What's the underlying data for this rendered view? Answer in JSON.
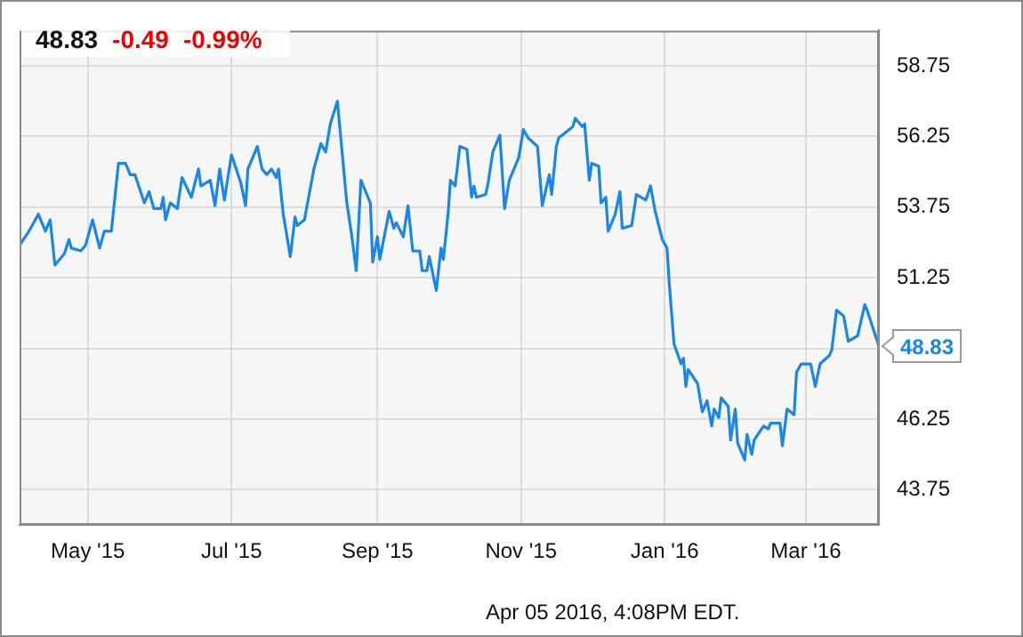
{
  "chart_data": {
    "type": "line",
    "x": [
      "2015-04-02",
      "2015-04-06",
      "2015-04-10",
      "2015-04-13",
      "2015-04-15",
      "2015-04-17",
      "2015-04-21",
      "2015-04-23",
      "2015-04-24",
      "2015-04-28",
      "2015-04-30",
      "2015-05-03",
      "2015-05-06",
      "2015-05-08",
      "2015-05-11",
      "2015-05-14",
      "2015-05-17",
      "2015-05-19",
      "2015-05-21",
      "2015-05-25",
      "2015-05-27",
      "2015-05-29",
      "2015-06-01",
      "2015-06-02",
      "2015-06-03",
      "2015-06-05",
      "2015-06-08",
      "2015-06-10",
      "2015-06-14",
      "2015-06-17",
      "2015-06-18",
      "2015-06-22",
      "2015-06-24",
      "2015-06-26",
      "2015-06-28",
      "2015-07-01",
      "2015-07-05",
      "2015-07-07",
      "2015-07-08",
      "2015-07-12",
      "2015-07-14",
      "2015-07-16",
      "2015-07-18",
      "2015-07-20",
      "2015-07-21",
      "2015-07-23",
      "2015-07-26",
      "2015-07-28",
      "2015-07-29",
      "2015-08-01",
      "2015-08-05",
      "2015-08-08",
      "2015-08-10",
      "2015-08-12",
      "2015-08-15",
      "2015-08-19",
      "2015-08-21",
      "2015-08-23",
      "2015-08-25",
      "2015-08-29",
      "2015-08-30",
      "2015-09-01",
      "2015-09-02",
      "2015-09-06",
      "2015-09-08",
      "2015-09-09",
      "2015-09-12",
      "2015-09-14",
      "2015-09-16",
      "2015-09-19",
      "2015-09-20",
      "2015-09-22",
      "2015-09-23",
      "2015-09-26",
      "2015-09-28",
      "2015-09-29",
      "2015-10-01",
      "2015-10-02",
      "2015-10-04",
      "2015-10-06",
      "2015-10-09",
      "2015-10-11",
      "2015-10-12",
      "2015-10-13",
      "2015-10-17",
      "2015-10-18",
      "2015-10-20",
      "2015-10-23",
      "2015-10-25",
      "2015-10-27",
      "2015-10-31",
      "2015-11-02",
      "2015-11-04",
      "2015-11-08",
      "2015-11-10",
      "2015-11-13",
      "2015-11-14",
      "2015-11-16",
      "2015-11-17",
      "2015-11-20",
      "2015-11-23",
      "2015-11-24",
      "2015-11-27",
      "2015-11-28",
      "2015-11-30",
      "2015-12-01",
      "2015-12-04",
      "2015-12-05",
      "2015-12-07",
      "2015-12-08",
      "2015-12-11",
      "2015-12-13",
      "2015-12-14",
      "2015-12-18",
      "2015-12-20",
      "2015-12-24",
      "2015-12-26",
      "2015-12-28",
      "2015-12-31",
      "2016-01-02",
      "2016-01-03",
      "2016-01-05",
      "2016-01-08",
      "2016-01-09",
      "2016-01-10",
      "2016-01-11",
      "2016-01-15",
      "2016-01-17",
      "2016-01-19",
      "2016-01-21",
      "2016-01-22",
      "2016-01-24",
      "2016-01-25",
      "2016-01-28",
      "2016-01-29",
      "2016-01-31",
      "2016-02-01",
      "2016-02-04",
      "2016-02-05",
      "2016-02-07",
      "2016-02-08",
      "2016-02-12",
      "2016-02-14",
      "2016-02-15",
      "2016-02-19",
      "2016-02-20",
      "2016-02-22",
      "2016-02-25",
      "2016-02-26",
      "2016-02-28",
      "2016-03-03",
      "2016-03-05",
      "2016-03-07",
      "2016-03-11",
      "2016-03-12",
      "2016-03-14",
      "2016-03-17",
      "2016-03-19",
      "2016-03-23",
      "2016-03-26",
      "2016-03-27",
      "2016-04-01"
    ],
    "series": [
      {
        "color": "#1a87e6",
        "values": [
          52.4,
          52.9,
          53.5,
          52.9,
          53.3,
          51.7,
          52.1,
          52.6,
          52.3,
          52.2,
          52.4,
          53.3,
          52.3,
          52.9,
          52.9,
          55.3,
          55.3,
          54.9,
          54.9,
          53.9,
          54.3,
          53.7,
          53.7,
          54.1,
          53.3,
          53.9,
          53.7,
          54.8,
          54.1,
          55.1,
          54.5,
          54.7,
          53.8,
          55.1,
          54.0,
          55.6,
          54.6,
          53.8,
          55.1,
          55.9,
          55.1,
          54.9,
          55.1,
          54.8,
          55.1,
          53.5,
          52.0,
          53.4,
          53.1,
          53.3,
          55.1,
          56.0,
          55.7,
          56.7,
          57.5,
          53.9,
          52.8,
          51.5,
          54.7,
          53.9,
          51.8,
          52.7,
          51.9,
          53.6,
          53.0,
          53.2,
          52.7,
          53.8,
          52.2,
          52.2,
          51.5,
          51.5,
          52.0,
          50.8,
          52.3,
          51.9,
          53.5,
          54.7,
          54.5,
          55.9,
          55.8,
          54.1,
          54.5,
          54.1,
          54.2,
          54.6,
          55.7,
          56.3,
          53.7,
          54.7,
          55.5,
          56.5,
          56.2,
          55.9,
          53.8,
          54.9,
          54.2,
          55.9,
          56.2,
          56.4,
          56.6,
          56.9,
          56.6,
          56.7,
          54.7,
          55.3,
          55.2,
          53.9,
          54.1,
          52.9,
          53.5,
          54.3,
          53.0,
          53.1,
          54.2,
          54.0,
          54.5,
          53.6,
          52.6,
          52.3,
          51.0,
          48.9,
          48.2,
          48.4,
          47.4,
          48.0,
          47.5,
          46.5,
          46.9,
          46.0,
          46.6,
          46.3,
          47.0,
          46.7,
          45.5,
          46.6,
          45.4,
          44.8,
          45.7,
          45.0,
          45.5,
          46.0,
          45.9,
          46.1,
          46.1,
          45.3,
          46.6,
          46.4,
          47.9,
          48.2,
          48.2,
          47.4,
          48.2,
          48.5,
          48.7,
          50.1,
          49.9,
          49.0,
          49.2,
          50.3,
          50.1,
          48.83
        ]
      }
    ],
    "xlim": [
      "2015-04-02",
      "2016-04-01"
    ],
    "xticks": [
      {
        "value": "2015-05-01",
        "label": "May '15"
      },
      {
        "value": "2015-07-01",
        "label": "Jul '15"
      },
      {
        "value": "2015-09-01",
        "label": "Sep '15"
      },
      {
        "value": "2015-11-01",
        "label": "Nov '15"
      },
      {
        "value": "2016-01-01",
        "label": "Jan '16"
      },
      {
        "value": "2016-03-01",
        "label": "Mar '16"
      }
    ],
    "ylim": [
      42.5,
      60
    ],
    "yticks": [
      {
        "value": 43.75,
        "label": "43.75"
      },
      {
        "value": 46.25,
        "label": "46.25"
      },
      {
        "value": 48.75,
        "label": null
      },
      {
        "value": 51.25,
        "label": "51.25"
      },
      {
        "value": 53.75,
        "label": "53.75"
      },
      {
        "value": 56.25,
        "label": "56.25"
      },
      {
        "value": 58.75,
        "label": "58.75"
      }
    ],
    "grid": true,
    "marker": "none",
    "line_style": "solid",
    "annotations": [
      "48.83",
      "-0.49",
      "-0.99%",
      {
        "text": "48.83",
        "x": "2016-04-01",
        "y": 48.83
      },
      "Apr 05 2016, 4:08PM EDT."
    ]
  }
}
